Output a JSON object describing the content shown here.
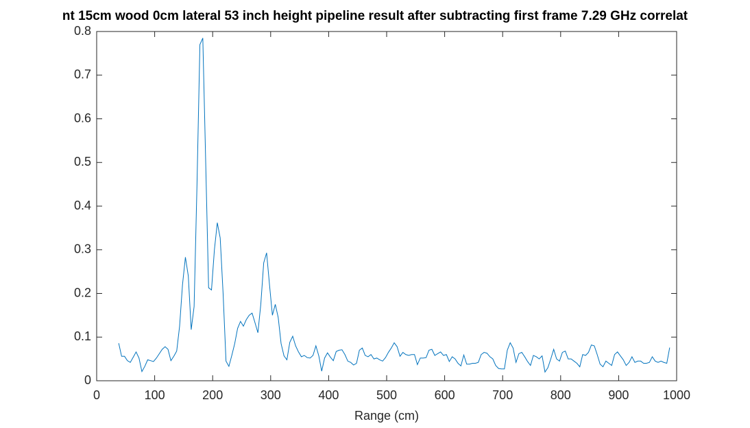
{
  "chart_data": {
    "type": "line",
    "title": "nt 15cm wood 0cm lateral 53 inch height pipeline result after subtracting first frame 7.29 GHz correlat",
    "xlabel": "Range (cm)",
    "color": "#0072bd",
    "xlim": [
      0,
      1000
    ],
    "xticks": [
      0,
      100,
      200,
      300,
      400,
      500,
      600,
      700,
      800,
      900,
      1000
    ],
    "ylim": [
      0,
      0.8
    ],
    "yticks": [
      0,
      0.1,
      0.2,
      0.3,
      0.4,
      0.5,
      0.6,
      0.7,
      0.8
    ],
    "x": [
      38,
      43,
      48,
      53,
      58,
      63,
      68,
      73,
      78,
      83,
      88,
      93,
      98,
      103,
      108,
      113,
      118,
      123,
      128,
      133,
      138,
      143,
      148,
      153,
      158,
      163,
      168,
      173,
      178,
      183,
      188,
      193,
      198,
      203,
      208,
      213,
      218,
      223,
      228,
      233,
      238,
      243,
      248,
      253,
      258,
      263,
      268,
      273,
      278,
      283,
      288,
      293,
      298,
      303,
      308,
      313,
      318,
      323,
      328,
      333,
      338,
      343,
      348,
      353,
      358,
      363,
      368,
      373,
      378,
      383,
      388,
      393,
      398,
      403,
      408,
      413,
      418,
      423,
      428,
      433,
      438,
      443,
      448,
      453,
      458,
      463,
      468,
      473,
      478,
      483,
      488,
      493,
      498,
      503,
      508,
      513,
      518,
      523,
      528,
      533,
      538,
      543,
      548,
      553,
      558,
      563,
      568,
      573,
      578,
      583,
      588,
      593,
      598,
      603,
      608,
      613,
      618,
      623,
      628,
      633,
      638,
      643,
      648,
      653,
      658,
      663,
      668,
      673,
      678,
      683,
      688,
      693,
      698,
      703,
      708,
      713,
      718,
      723,
      728,
      733,
      738,
      743,
      748,
      753,
      758,
      763,
      768,
      773,
      778,
      783,
      788,
      793,
      798,
      803,
      808,
      813,
      818,
      823,
      828,
      833,
      838,
      843,
      848,
      853,
      858,
      863,
      868,
      873,
      878,
      883,
      888,
      893,
      898,
      903,
      908,
      913,
      918,
      923,
      928,
      933,
      938,
      943,
      948,
      953,
      958,
      963,
      968,
      973,
      978,
      983,
      988
    ],
    "values": [
      0.086,
      0.056,
      0.056,
      0.046,
      0.042,
      0.054,
      0.066,
      0.052,
      0.021,
      0.033,
      0.048,
      0.046,
      0.044,
      0.052,
      0.062,
      0.072,
      0.078,
      0.072,
      0.046,
      0.056,
      0.068,
      0.125,
      0.22,
      0.283,
      0.24,
      0.117,
      0.17,
      0.45,
      0.77,
      0.785,
      0.5,
      0.213,
      0.208,
      0.3,
      0.362,
      0.327,
      0.2,
      0.045,
      0.033,
      0.058,
      0.085,
      0.12,
      0.136,
      0.125,
      0.14,
      0.15,
      0.155,
      0.133,
      0.11,
      0.175,
      0.27,
      0.293,
      0.22,
      0.15,
      0.175,
      0.145,
      0.085,
      0.057,
      0.048,
      0.088,
      0.102,
      0.08,
      0.066,
      0.055,
      0.058,
      0.053,
      0.052,
      0.058,
      0.08,
      0.057,
      0.022,
      0.052,
      0.064,
      0.054,
      0.046,
      0.067,
      0.07,
      0.071,
      0.06,
      0.045,
      0.042,
      0.036,
      0.04,
      0.07,
      0.075,
      0.058,
      0.055,
      0.06,
      0.05,
      0.052,
      0.048,
      0.045,
      0.053,
      0.065,
      0.075,
      0.087,
      0.078,
      0.056,
      0.065,
      0.06,
      0.058,
      0.06,
      0.06,
      0.037,
      0.052,
      0.052,
      0.053,
      0.07,
      0.072,
      0.058,
      0.062,
      0.066,
      0.058,
      0.06,
      0.044,
      0.055,
      0.05,
      0.04,
      0.034,
      0.059,
      0.038,
      0.038,
      0.04,
      0.04,
      0.042,
      0.06,
      0.065,
      0.063,
      0.055,
      0.05,
      0.035,
      0.028,
      0.027,
      0.027,
      0.07,
      0.087,
      0.075,
      0.042,
      0.062,
      0.065,
      0.055,
      0.044,
      0.035,
      0.058,
      0.055,
      0.05,
      0.057,
      0.02,
      0.03,
      0.05,
      0.072,
      0.05,
      0.045,
      0.065,
      0.068,
      0.05,
      0.05,
      0.045,
      0.04,
      0.032,
      0.06,
      0.058,
      0.065,
      0.082,
      0.08,
      0.06,
      0.038,
      0.032,
      0.045,
      0.04,
      0.035,
      0.06,
      0.066,
      0.057,
      0.048,
      0.035,
      0.042,
      0.055,
      0.042,
      0.045,
      0.045,
      0.04,
      0.04,
      0.042,
      0.055,
      0.045,
      0.042,
      0.045,
      0.042,
      0.04,
      0.076
    ]
  }
}
